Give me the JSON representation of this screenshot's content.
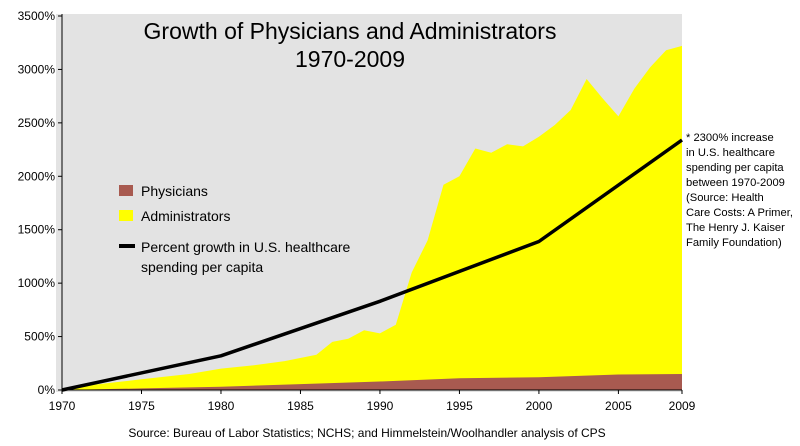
{
  "chart_data": {
    "type": "area",
    "title": "Growth of Physicians and Administrators",
    "subtitle": "1970-2009",
    "xlabel": "",
    "ylabel": "",
    "xlim": [
      1970,
      2009
    ],
    "ylim": [
      0,
      3500
    ],
    "x_ticks": [
      "1970",
      "1975",
      "1980",
      "1985",
      "1990",
      "1995",
      "2000",
      "2005",
      "2009"
    ],
    "y_ticks": [
      "0%",
      "500%",
      "1000%",
      "1500%",
      "2000%",
      "2500%",
      "3000%",
      "3500%"
    ],
    "grid": false,
    "legend_position": "left",
    "series": [
      {
        "name": "Physicians",
        "type": "area",
        "color": "#a85a50",
        "x": [
          1970,
          1975,
          1980,
          1985,
          1990,
          1995,
          2000,
          2005,
          2009
        ],
        "y": [
          0,
          15,
          30,
          55,
          80,
          110,
          120,
          145,
          150
        ]
      },
      {
        "name": "Administrators",
        "type": "area",
        "color": "#ffff00",
        "x": [
          1970,
          1972,
          1975,
          1978,
          1980,
          1982,
          1984,
          1986,
          1987,
          1988,
          1989,
          1990,
          1991,
          1992,
          1993,
          1994,
          1995,
          1996,
          1997,
          1998,
          1999,
          2000,
          2001,
          2002,
          2003,
          2004,
          2005,
          2006,
          2007,
          2008,
          2009
        ],
        "y": [
          0,
          50,
          100,
          150,
          200,
          230,
          270,
          330,
          450,
          480,
          560,
          530,
          610,
          1100,
          1400,
          1920,
          2000,
          2260,
          2220,
          2300,
          2280,
          2370,
          2480,
          2620,
          2910,
          2730,
          2560,
          2820,
          3020,
          3180,
          3220
        ]
      },
      {
        "name": "Percent growth in U.S. healthcare spending per capita",
        "type": "line",
        "color": "#000000",
        "x": [
          1970,
          1980,
          1990,
          2000,
          2009
        ],
        "y": [
          0,
          320,
          830,
          1390,
          2340
        ]
      }
    ],
    "annotation": [
      "* 2300% increase",
      "in U.S. healthcare",
      "spending per capita",
      "between 1970-2009",
      "(Source: Health",
      "Care Costs: A Primer,",
      "The Henry J. Kaiser",
      "Family Foundation)"
    ],
    "source": "Source: Bureau of Labor Statistics; NCHS; and Himmelstein/Woolhandler analysis of CPS"
  },
  "colors": {
    "plot_background": "#e3e3e3",
    "administrators": "#ffff00",
    "physicians": "#a85a50",
    "spending_line": "#000000"
  }
}
